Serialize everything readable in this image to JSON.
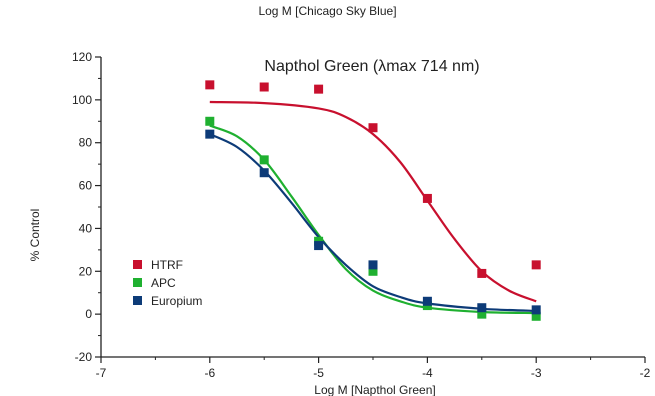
{
  "header_label": "Log M [Chicago Sky Blue]",
  "chart_data": {
    "type": "scatter",
    "title": "Napthol Green (λmax 714 nm)",
    "xlabel": "Log M [Napthol Green]",
    "ylabel": "% Control",
    "xlim": [
      -7,
      -2
    ],
    "ylim": [
      -20,
      120
    ],
    "xticks": [
      -7,
      -6,
      -5,
      -4,
      -3,
      -2
    ],
    "yticks": [
      -20,
      0,
      20,
      40,
      60,
      80,
      100,
      120
    ],
    "grid": false,
    "legend_position": "bottom-left",
    "series": [
      {
        "name": "HTRF",
        "color": "#c8102e",
        "marker": "square",
        "points": [
          [
            -6,
            107
          ],
          [
            -5.5,
            106
          ],
          [
            -5,
            105
          ],
          [
            -4.5,
            87
          ],
          [
            -4,
            54
          ],
          [
            -3.5,
            19
          ],
          [
            -3,
            23
          ]
        ],
        "curve": {
          "x": [
            -6,
            -5.5,
            -5,
            -4.75,
            -4.5,
            -4.25,
            -4,
            -3.75,
            -3.5,
            -3.25,
            -3
          ],
          "y": [
            99,
            98.5,
            96,
            92,
            84,
            71,
            53,
            35,
            20,
            11,
            6
          ]
        }
      },
      {
        "name": "APC",
        "color": "#1fb030",
        "marker": "square",
        "points": [
          [
            -6,
            90
          ],
          [
            -5.5,
            72
          ],
          [
            -5,
            34
          ],
          [
            -4.5,
            20
          ],
          [
            -4,
            4
          ],
          [
            -3.5,
            0
          ],
          [
            -3,
            -1
          ]
        ],
        "curve": {
          "x": [
            -6,
            -5.75,
            -5.5,
            -5.25,
            -5,
            -4.75,
            -4.5,
            -4.25,
            -4,
            -3.5,
            -3
          ],
          "y": [
            88,
            83,
            72,
            55,
            37,
            21,
            11,
            6,
            3,
            1,
            0.5
          ]
        }
      },
      {
        "name": "Europium",
        "color": "#0d3b78",
        "marker": "square",
        "points": [
          [
            -6,
            84
          ],
          [
            -5.5,
            66
          ],
          [
            -5,
            32
          ],
          [
            -4.5,
            23
          ],
          [
            -4,
            6
          ],
          [
            -3.5,
            3
          ],
          [
            -3,
            2
          ]
        ],
        "curve": {
          "x": [
            -6,
            -5.75,
            -5.5,
            -5.25,
            -5,
            -4.75,
            -4.5,
            -4.25,
            -4,
            -3.5,
            -3
          ],
          "y": [
            84,
            78,
            67,
            52,
            36,
            23,
            13,
            8,
            5,
            2.5,
            1.5
          ]
        }
      }
    ]
  }
}
